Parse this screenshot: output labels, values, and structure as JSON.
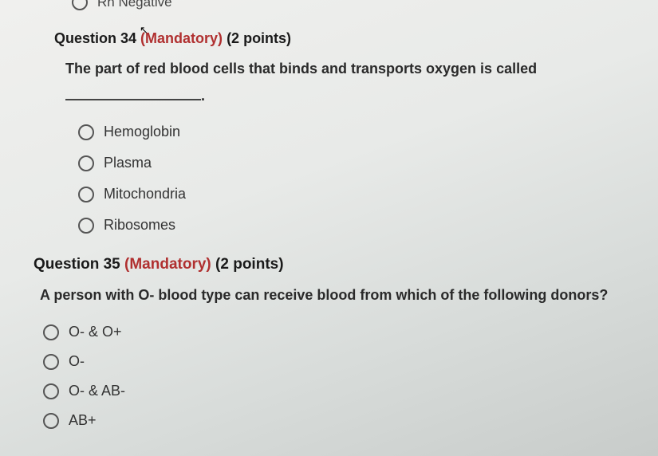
{
  "partial": {
    "label": "Rh Negative"
  },
  "q34": {
    "num": "Question 34",
    "mandatory": "(Mandatory)",
    "points": "(2 points)",
    "text": "The part of red blood cells that binds and transports oxygen is called",
    "opts": {
      "a": "Hemoglobin",
      "b": "Plasma",
      "c": "Mitochondria",
      "d": "Ribosomes"
    }
  },
  "q35": {
    "num": "Question 35",
    "mandatory": "(Mandatory)",
    "points": "(2 points)",
    "text": "A person with O- blood type can receive blood from which of the following donors?",
    "opts": {
      "a": "O- & O+",
      "b": "O-",
      "c": "O- & AB-",
      "d": "AB+"
    }
  },
  "colors": {
    "mandatory": "#b03030",
    "text": "#2a2a2a",
    "radio_border": "#555"
  }
}
